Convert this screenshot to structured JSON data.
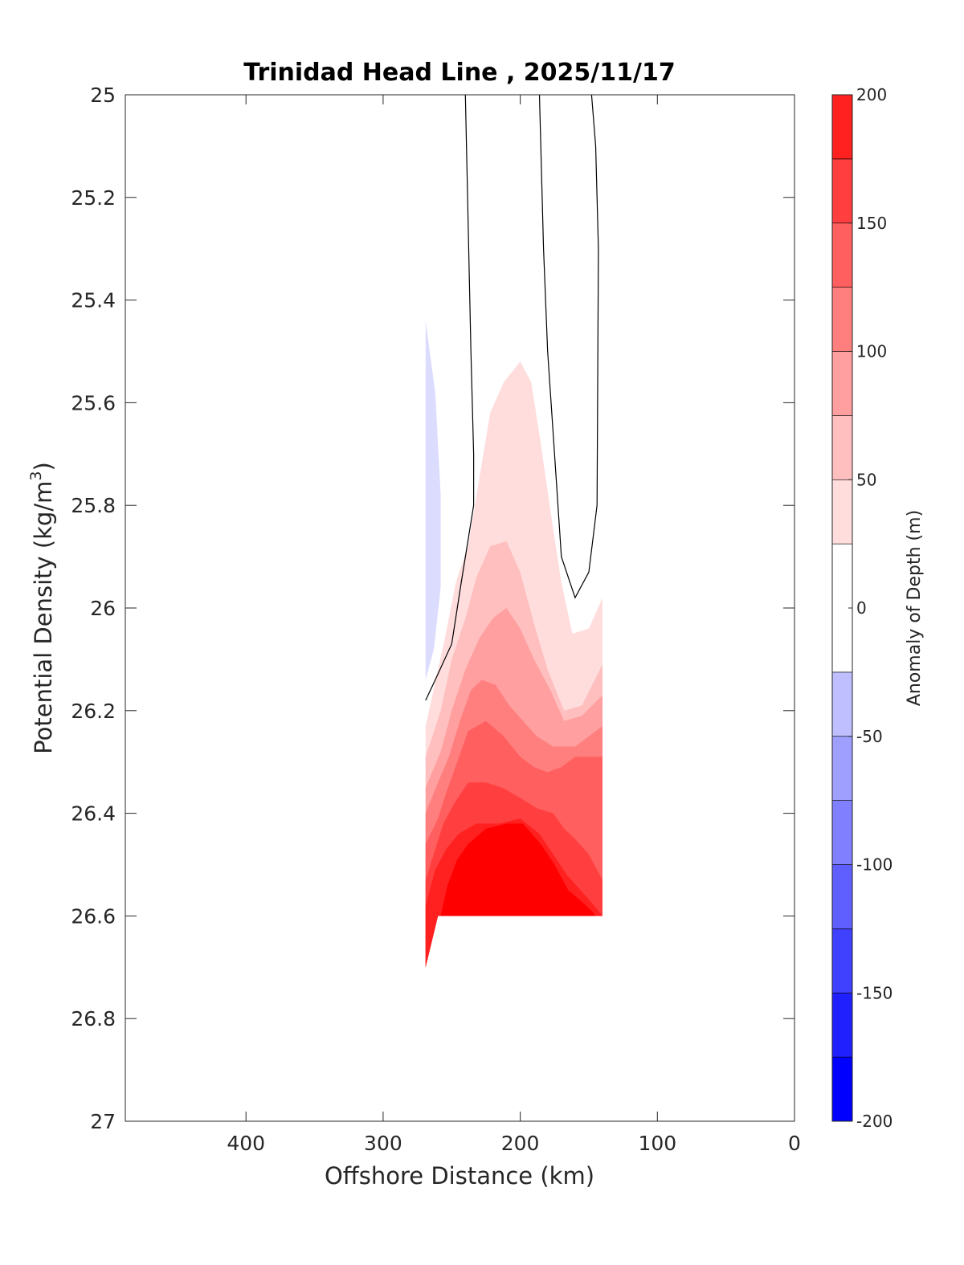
{
  "chart_data": {
    "type": "contour",
    "title": "Trinidad Head Line , 2025/11/17",
    "xlabel": "Offshore Distance (km)",
    "ylabel": {
      "main": "Potential Density (kg/m",
      "superscript": "3",
      "close": ")"
    },
    "xlim": [
      488,
      0
    ],
    "x_reversed": true,
    "ylim": [
      25,
      27
    ],
    "y_reversed": true,
    "x_ticks": [
      "400",
      "300",
      "200",
      "100",
      "0"
    ],
    "y_ticks": [
      "25",
      "25.2",
      "25.4",
      "25.6",
      "25.8",
      "26",
      "26.2",
      "26.4",
      "26.6",
      "26.8",
      "27"
    ],
    "colorbar": {
      "label": "Anomaly of Depth (m)",
      "range": [
        -200,
        200
      ],
      "tick_labels": [
        "-200",
        "-150",
        "-100",
        "-50",
        "0",
        "50",
        "100",
        "150",
        "200"
      ],
      "levels": [
        -200,
        -175,
        -150,
        -125,
        -100,
        -75,
        -50,
        -25,
        25,
        50,
        75,
        100,
        125,
        150,
        175,
        200
      ],
      "colors": [
        "#0000ff",
        "#2020ff",
        "#4040ff",
        "#5f5fff",
        "#7f7fff",
        "#9f9fff",
        "#bfbfff",
        "#dcdcff",
        "#ffffff",
        "#ffdddd",
        "#ffbfbf",
        "#ff9f9f",
        "#ff7f7f",
        "#ff5f5f",
        "#ff3f3f",
        "#ff2020",
        "#ff0000"
      ]
    },
    "filled_regions": [
      {
        "anomaly_min": -50,
        "anomaly_max": -25,
        "color": "#dcdcff",
        "points": [
          [
            269,
            25.44
          ],
          [
            262,
            25.58
          ],
          [
            258,
            25.78
          ],
          [
            258,
            25.96
          ],
          [
            263,
            26.08
          ],
          [
            269,
            26.14
          ]
        ]
      },
      {
        "anomaly_min": 25,
        "anomaly_max": 50,
        "color": "#ffdddd",
        "points": [
          [
            269,
            26.23
          ],
          [
            255,
            26.06
          ],
          [
            247,
            25.95
          ],
          [
            238,
            25.88
          ],
          [
            230,
            25.75
          ],
          [
            222,
            25.62
          ],
          [
            212,
            25.56
          ],
          [
            200,
            25.52
          ],
          [
            192,
            25.56
          ],
          [
            185,
            25.68
          ],
          [
            178,
            25.81
          ],
          [
            170,
            25.95
          ],
          [
            162,
            26.05
          ],
          [
            150,
            26.04
          ],
          [
            140,
            25.98
          ],
          [
            140,
            26.6
          ],
          [
            260,
            26.6
          ],
          [
            269,
            26.7
          ]
        ]
      },
      {
        "anomaly_min": 50,
        "anomaly_max": 75,
        "color": "#ffbfbf",
        "points": [
          [
            269,
            26.29
          ],
          [
            258,
            26.2
          ],
          [
            250,
            26.1
          ],
          [
            240,
            26.02
          ],
          [
            232,
            25.94
          ],
          [
            222,
            25.88
          ],
          [
            210,
            25.87
          ],
          [
            200,
            25.93
          ],
          [
            190,
            26.03
          ],
          [
            180,
            26.12
          ],
          [
            168,
            26.2
          ],
          [
            155,
            26.19
          ],
          [
            140,
            26.11
          ],
          [
            140,
            26.6
          ],
          [
            260,
            26.6
          ],
          [
            269,
            26.7
          ]
        ]
      },
      {
        "anomaly_min": 75,
        "anomaly_max": 100,
        "color": "#ff9f9f",
        "points": [
          [
            269,
            26.35
          ],
          [
            258,
            26.28
          ],
          [
            250,
            26.2
          ],
          [
            240,
            26.12
          ],
          [
            230,
            26.06
          ],
          [
            220,
            26.02
          ],
          [
            210,
            26.0
          ],
          [
            200,
            26.04
          ],
          [
            190,
            26.1
          ],
          [
            178,
            26.16
          ],
          [
            168,
            26.22
          ],
          [
            155,
            26.21
          ],
          [
            140,
            26.17
          ],
          [
            140,
            26.6
          ],
          [
            260,
            26.6
          ],
          [
            269,
            26.7
          ]
        ]
      },
      {
        "anomaly_min": 100,
        "anomaly_max": 125,
        "color": "#ff7f7f",
        "points": [
          [
            269,
            26.4
          ],
          [
            260,
            26.34
          ],
          [
            252,
            26.29
          ],
          [
            244,
            26.22
          ],
          [
            236,
            26.16
          ],
          [
            228,
            26.14
          ],
          [
            218,
            26.15
          ],
          [
            208,
            26.19
          ],
          [
            198,
            26.22
          ],
          [
            188,
            26.25
          ],
          [
            176,
            26.27
          ],
          [
            160,
            26.27
          ],
          [
            140,
            26.23
          ],
          [
            140,
            26.6
          ],
          [
            260,
            26.6
          ],
          [
            269,
            26.7
          ]
        ]
      },
      {
        "anomaly_min": 125,
        "anomaly_max": 150,
        "color": "#ff5f5f",
        "points": [
          [
            269,
            26.46
          ],
          [
            260,
            26.41
          ],
          [
            254,
            26.36
          ],
          [
            246,
            26.3
          ],
          [
            238,
            26.24
          ],
          [
            225,
            26.22
          ],
          [
            212,
            26.25
          ],
          [
            200,
            26.29
          ],
          [
            190,
            26.31
          ],
          [
            180,
            26.32
          ],
          [
            170,
            26.31
          ],
          [
            160,
            26.29
          ],
          [
            140,
            26.29
          ],
          [
            140,
            26.6
          ],
          [
            260,
            26.6
          ],
          [
            269,
            26.7
          ]
        ]
      },
      {
        "anomaly_min": 150,
        "anomaly_max": 175,
        "color": "#ff3f3f",
        "points": [
          [
            269,
            26.53
          ],
          [
            262,
            26.47
          ],
          [
            256,
            26.42
          ],
          [
            248,
            26.38
          ],
          [
            238,
            26.34
          ],
          [
            225,
            26.34
          ],
          [
            213,
            26.35
          ],
          [
            200,
            26.37
          ],
          [
            188,
            26.39
          ],
          [
            176,
            26.4
          ],
          [
            168,
            26.43
          ],
          [
            160,
            26.45
          ],
          [
            150,
            26.48
          ],
          [
            140,
            26.53
          ],
          [
            140,
            26.6
          ],
          [
            260,
            26.6
          ],
          [
            269,
            26.7
          ]
        ]
      },
      {
        "anomaly_min": 175,
        "anomaly_max": 200,
        "color": "#ff2020",
        "points": [
          [
            269,
            26.58
          ],
          [
            262,
            26.51
          ],
          [
            254,
            26.47
          ],
          [
            245,
            26.44
          ],
          [
            232,
            26.42
          ],
          [
            215,
            26.42
          ],
          [
            200,
            26.41
          ],
          [
            186,
            26.44
          ],
          [
            176,
            26.48
          ],
          [
            166,
            26.52
          ],
          [
            156,
            26.55
          ],
          [
            146,
            26.58
          ],
          [
            140,
            26.6
          ],
          [
            260,
            26.6
          ],
          [
            269,
            26.7
          ]
        ]
      },
      {
        "anomaly_min": 200,
        "anomaly_max": 200,
        "color": "#ff0000",
        "points": [
          [
            258,
            26.6
          ],
          [
            253,
            26.54
          ],
          [
            246,
            26.49
          ],
          [
            238,
            26.46
          ],
          [
            225,
            26.43
          ],
          [
            210,
            26.42
          ],
          [
            198,
            26.42
          ],
          [
            185,
            26.46
          ],
          [
            175,
            26.5
          ],
          [
            165,
            26.55
          ],
          [
            156,
            26.57
          ],
          [
            148,
            26.59
          ],
          [
            145,
            26.6
          ]
        ]
      }
    ],
    "zero_contours": [
      {
        "points": [
          [
            240,
            25.0
          ],
          [
            236,
            25.5
          ],
          [
            234,
            25.7
          ],
          [
            234,
            25.8
          ],
          [
            243,
            25.95
          ],
          [
            250,
            26.07
          ],
          [
            262,
            26.14
          ],
          [
            269,
            26.18
          ]
        ]
      },
      {
        "points": [
          [
            186,
            25.0
          ],
          [
            183,
            25.3
          ],
          [
            180,
            25.5
          ],
          [
            175,
            25.7
          ],
          [
            170,
            25.9
          ],
          [
            160,
            25.98
          ],
          [
            150,
            25.93
          ],
          [
            144,
            25.8
          ],
          [
            143,
            25.3
          ],
          [
            145,
            25.1
          ],
          [
            148,
            25.0
          ]
        ]
      }
    ]
  }
}
